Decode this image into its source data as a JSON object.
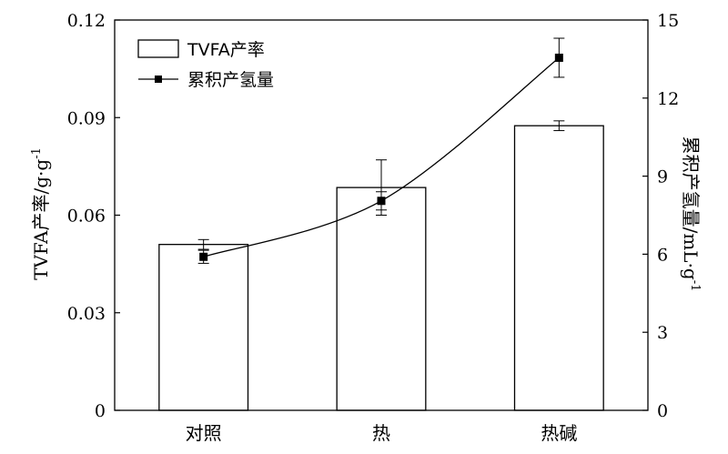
{
  "chart_data": {
    "type": "bar",
    "categories": [
      "对照",
      "热",
      "热碱"
    ],
    "series": [
      {
        "name": "TVFA产率",
        "type": "bar",
        "axis": "left",
        "values": [
          0.051,
          0.0685,
          0.0875
        ],
        "errors": [
          0.0015,
          0.0085,
          0.0015
        ]
      },
      {
        "name": "累积产氢量",
        "type": "line",
        "axis": "right",
        "values": [
          5.9,
          8.05,
          13.55
        ],
        "errors": [
          0.25,
          0.35,
          0.75
        ]
      }
    ],
    "ylabel": "TVFA产率/g·g",
    "ylabel_sup": "-1",
    "y2label": "累积产氢量/mL·g",
    "y2label_sup": "-1",
    "ylim": [
      0,
      0.12
    ],
    "y2lim": [
      0,
      15
    ],
    "yticks": [
      "0",
      "0.03",
      "0.06",
      "0.09",
      "0.12"
    ],
    "y2ticks": [
      "0",
      "3",
      "6",
      "9",
      "12",
      "15"
    ],
    "legend_position": "top-left",
    "grid": false
  }
}
